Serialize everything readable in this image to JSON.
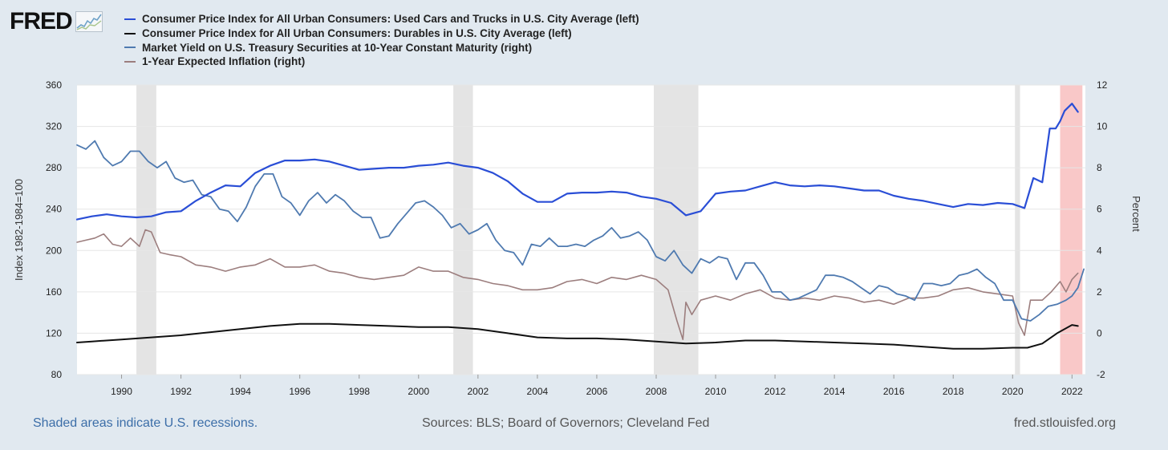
{
  "logo": {
    "text": "FRED",
    "icon": "fred-chart-icon"
  },
  "legend": [
    {
      "label": "Consumer Price Index for All Urban Consumers: Used Cars and Trucks in U.S. City Average (left)",
      "color": "#2a4ed6"
    },
    {
      "label": "Consumer Price Index for All Urban Consumers: Durables in U.S. City Average (left)",
      "color": "#111111"
    },
    {
      "label": "Market Yield on U.S. Treasury Securities at 10-Year Constant Maturity (right)",
      "color": "#4f7ab0"
    },
    {
      "label": "1-Year Expected Inflation (right)",
      "color": "#9c7e7e"
    }
  ],
  "footer": {
    "left": "Shaded areas indicate U.S. recessions.",
    "center": "Sources: BLS; Board of Governors; Cleveland Fed",
    "right": "fred.stlouisfed.org"
  },
  "chart_data": {
    "type": "line",
    "xlim": [
      1988.5,
      2022.45
    ],
    "x_ticks": [
      1990,
      1992,
      1994,
      1996,
      1998,
      2000,
      2002,
      2004,
      2006,
      2008,
      2010,
      2012,
      2014,
      2016,
      2018,
      2020,
      2022
    ],
    "y_left": {
      "label": "Index 1982-1984=100",
      "lim": [
        80,
        360
      ],
      "ticks": [
        80,
        120,
        160,
        200,
        240,
        280,
        320,
        360
      ]
    },
    "y_right": {
      "label": "Percent",
      "lim": [
        -2,
        12
      ],
      "ticks": [
        -2,
        0,
        2,
        4,
        6,
        8,
        10,
        12
      ]
    },
    "recessions": [
      {
        "start": 1990.5,
        "end": 1991.17,
        "color": "#e4e4e4"
      },
      {
        "start": 2001.17,
        "end": 2001.83,
        "color": "#e4e4e4"
      },
      {
        "start": 2007.92,
        "end": 2009.42,
        "color": "#e4e4e4"
      },
      {
        "start": 2020.08,
        "end": 2020.25,
        "color": "#e4e4e4"
      },
      {
        "start": 2021.6,
        "end": 2022.35,
        "color": "#f9c8c8"
      }
    ],
    "series": [
      {
        "name": "Consumer Price Index for All Urban Consumers: Used Cars and Trucks in U.S. City Average (left)",
        "axis": "left",
        "color": "#2a4ed6",
        "width": 2.2,
        "x": [
          1988.5,
          1989.0,
          1989.5,
          1990.0,
          1990.5,
          1991.0,
          1991.5,
          1992.0,
          1992.5,
          1993.0,
          1993.5,
          1994.0,
          1994.5,
          1995.0,
          1995.5,
          1996.0,
          1996.5,
          1997.0,
          1997.5,
          1998.0,
          1998.5,
          1999.0,
          1999.5,
          2000.0,
          2000.5,
          2001.0,
          2001.5,
          2002.0,
          2002.5,
          2003.0,
          2003.5,
          2004.0,
          2004.5,
          2005.0,
          2005.5,
          2006.0,
          2006.5,
          2007.0,
          2007.5,
          2008.0,
          2008.5,
          2009.0,
          2009.5,
          2010.0,
          2010.5,
          2011.0,
          2011.5,
          2012.0,
          2012.5,
          2013.0,
          2013.5,
          2014.0,
          2014.5,
          2015.0,
          2015.5,
          2016.0,
          2016.5,
          2017.0,
          2017.5,
          2018.0,
          2018.5,
          2019.0,
          2019.5,
          2020.0,
          2020.4,
          2020.7,
          2021.0,
          2021.25,
          2021.45,
          2021.6,
          2021.75,
          2022.0,
          2022.2
        ],
        "y": [
          230,
          233,
          235,
          233,
          232,
          233,
          237,
          238,
          248,
          256,
          263,
          262,
          275,
          282,
          287,
          287,
          288,
          286,
          282,
          278,
          279,
          280,
          280,
          282,
          283,
          285,
          282,
          280,
          275,
          267,
          255,
          247,
          247,
          255,
          256,
          256,
          257,
          256,
          252,
          250,
          246,
          234,
          238,
          255,
          257,
          258,
          262,
          266,
          263,
          262,
          263,
          262,
          260,
          258,
          258,
          253,
          250,
          248,
          245,
          242,
          245,
          244,
          246,
          245,
          241,
          270,
          266,
          318,
          318,
          325,
          335,
          342,
          334
        ]
      },
      {
        "name": "Consumer Price Index for All Urban Consumers: Durables in U.S. City Average (left)",
        "axis": "left",
        "color": "#111111",
        "width": 2,
        "x": [
          1988.5,
          1989.0,
          1990.0,
          1991.0,
          1992.0,
          1993.0,
          1994.0,
          1995.0,
          1996.0,
          1997.0,
          1998.0,
          1999.0,
          2000.0,
          2001.0,
          2002.0,
          2003.0,
          2004.0,
          2005.0,
          2006.0,
          2007.0,
          2008.0,
          2009.0,
          2010.0,
          2011.0,
          2012.0,
          2013.0,
          2014.0,
          2015.0,
          2016.0,
          2017.0,
          2018.0,
          2019.0,
          2020.0,
          2020.5,
          2021.0,
          2021.5,
          2022.0,
          2022.2
        ],
        "y": [
          111,
          112,
          114,
          116,
          118,
          121,
          124,
          127,
          129,
          129,
          128,
          127,
          126,
          126,
          124,
          120,
          116,
          115,
          115,
          114,
          112,
          110,
          111,
          113,
          113,
          112,
          111,
          110,
          109,
          107,
          105,
          105,
          106,
          106,
          110,
          120,
          128,
          127
        ]
      },
      {
        "name": "Market Yield on U.S. Treasury Securities at 10-Year Constant Maturity (right)",
        "axis": "right",
        "color": "#4f7ab0",
        "width": 1.8,
        "x": [
          1988.5,
          1988.8,
          1989.1,
          1989.4,
          1989.7,
          1990.0,
          1990.3,
          1990.6,
          1990.9,
          1991.2,
          1991.5,
          1991.8,
          1992.1,
          1992.4,
          1992.7,
          1993.0,
          1993.3,
          1993.6,
          1993.9,
          1994.2,
          1994.5,
          1994.8,
          1995.1,
          1995.4,
          1995.7,
          1996.0,
          1996.3,
          1996.6,
          1996.9,
          1997.2,
          1997.5,
          1997.8,
          1998.1,
          1998.4,
          1998.7,
          1999.0,
          1999.3,
          1999.6,
          1999.9,
          2000.2,
          2000.5,
          2000.8,
          2001.1,
          2001.4,
          2001.7,
          2002.0,
          2002.3,
          2002.6,
          2002.9,
          2003.2,
          2003.5,
          2003.8,
          2004.1,
          2004.4,
          2004.7,
          2005.0,
          2005.3,
          2005.6,
          2005.9,
          2006.2,
          2006.5,
          2006.8,
          2007.1,
          2007.4,
          2007.7,
          2008.0,
          2008.3,
          2008.6,
          2008.9,
          2009.2,
          2009.5,
          2009.8,
          2010.1,
          2010.4,
          2010.7,
          2011.0,
          2011.3,
          2011.6,
          2011.9,
          2012.2,
          2012.5,
          2012.8,
          2013.1,
          2013.4,
          2013.7,
          2014.0,
          2014.3,
          2014.6,
          2014.9,
          2015.2,
          2015.5,
          2015.8,
          2016.1,
          2016.4,
          2016.7,
          2017.0,
          2017.3,
          2017.6,
          2017.9,
          2018.2,
          2018.5,
          2018.8,
          2019.1,
          2019.4,
          2019.7,
          2020.0,
          2020.3,
          2020.6,
          2020.9,
          2021.2,
          2021.5,
          2021.8,
          2022.0,
          2022.2,
          2022.4
        ],
        "y": [
          9.1,
          8.9,
          9.3,
          8.5,
          8.1,
          8.3,
          8.8,
          8.8,
          8.3,
          8.0,
          8.3,
          7.5,
          7.3,
          7.4,
          6.7,
          6.6,
          6.0,
          5.9,
          5.4,
          6.1,
          7.1,
          7.7,
          7.7,
          6.6,
          6.3,
          5.7,
          6.4,
          6.8,
          6.3,
          6.7,
          6.4,
          5.9,
          5.6,
          5.6,
          4.6,
          4.7,
          5.3,
          5.8,
          6.3,
          6.4,
          6.1,
          5.7,
          5.1,
          5.3,
          4.8,
          5.0,
          5.3,
          4.5,
          4.0,
          3.9,
          3.3,
          4.3,
          4.2,
          4.6,
          4.2,
          4.2,
          4.3,
          4.2,
          4.5,
          4.7,
          5.1,
          4.6,
          4.7,
          4.9,
          4.5,
          3.7,
          3.5,
          4.0,
          3.3,
          2.9,
          3.6,
          3.4,
          3.7,
          3.6,
          2.6,
          3.4,
          3.4,
          2.8,
          2.0,
          2.0,
          1.6,
          1.7,
          1.9,
          2.1,
          2.8,
          2.8,
          2.7,
          2.5,
          2.2,
          1.9,
          2.3,
          2.2,
          1.9,
          1.8,
          1.6,
          2.4,
          2.4,
          2.3,
          2.4,
          2.8,
          2.9,
          3.1,
          2.7,
          2.4,
          1.6,
          1.6,
          0.7,
          0.6,
          0.9,
          1.3,
          1.4,
          1.6,
          1.8,
          2.2,
          3.1
        ]
      },
      {
        "name": "1-Year Expected Inflation (right)",
        "axis": "right",
        "color": "#9c7e7e",
        "width": 1.6,
        "x": [
          1988.5,
          1988.8,
          1989.1,
          1989.4,
          1989.7,
          1990.0,
          1990.3,
          1990.6,
          1990.8,
          1991.0,
          1991.3,
          1991.6,
          1992.0,
          1992.5,
          1993.0,
          1993.5,
          1994.0,
          1994.5,
          1995.0,
          1995.5,
          1996.0,
          1996.5,
          1997.0,
          1997.5,
          1998.0,
          1998.5,
          1999.0,
          1999.5,
          2000.0,
          2000.5,
          2001.0,
          2001.5,
          2002.0,
          2002.5,
          2003.0,
          2003.5,
          2004.0,
          2004.5,
          2005.0,
          2005.5,
          2006.0,
          2006.5,
          2007.0,
          2007.5,
          2008.0,
          2008.4,
          2008.7,
          2008.9,
          2009.0,
          2009.2,
          2009.5,
          2010.0,
          2010.5,
          2011.0,
          2011.5,
          2012.0,
          2012.5,
          2013.0,
          2013.5,
          2014.0,
          2014.5,
          2015.0,
          2015.5,
          2016.0,
          2016.5,
          2017.0,
          2017.5,
          2018.0,
          2018.5,
          2019.0,
          2019.5,
          2020.0,
          2020.2,
          2020.4,
          2020.6,
          2021.0,
          2021.3,
          2021.6,
          2021.8,
          2022.0,
          2022.2
        ],
        "y": [
          4.4,
          4.5,
          4.6,
          4.8,
          4.3,
          4.2,
          4.6,
          4.2,
          5.0,
          4.9,
          3.9,
          3.8,
          3.7,
          3.3,
          3.2,
          3.0,
          3.2,
          3.3,
          3.6,
          3.2,
          3.2,
          3.3,
          3.0,
          2.9,
          2.7,
          2.6,
          2.7,
          2.8,
          3.2,
          3.0,
          3.0,
          2.7,
          2.6,
          2.4,
          2.3,
          2.1,
          2.1,
          2.2,
          2.5,
          2.6,
          2.4,
          2.7,
          2.6,
          2.8,
          2.6,
          2.1,
          0.6,
          -0.3,
          1.5,
          0.9,
          1.6,
          1.8,
          1.6,
          1.9,
          2.1,
          1.7,
          1.6,
          1.7,
          1.6,
          1.8,
          1.7,
          1.5,
          1.6,
          1.4,
          1.7,
          1.7,
          1.8,
          2.1,
          2.2,
          2.0,
          1.9,
          1.8,
          0.5,
          -0.1,
          1.6,
          1.6,
          2.0,
          2.5,
          2.0,
          2.6,
          2.9
        ]
      }
    ]
  }
}
